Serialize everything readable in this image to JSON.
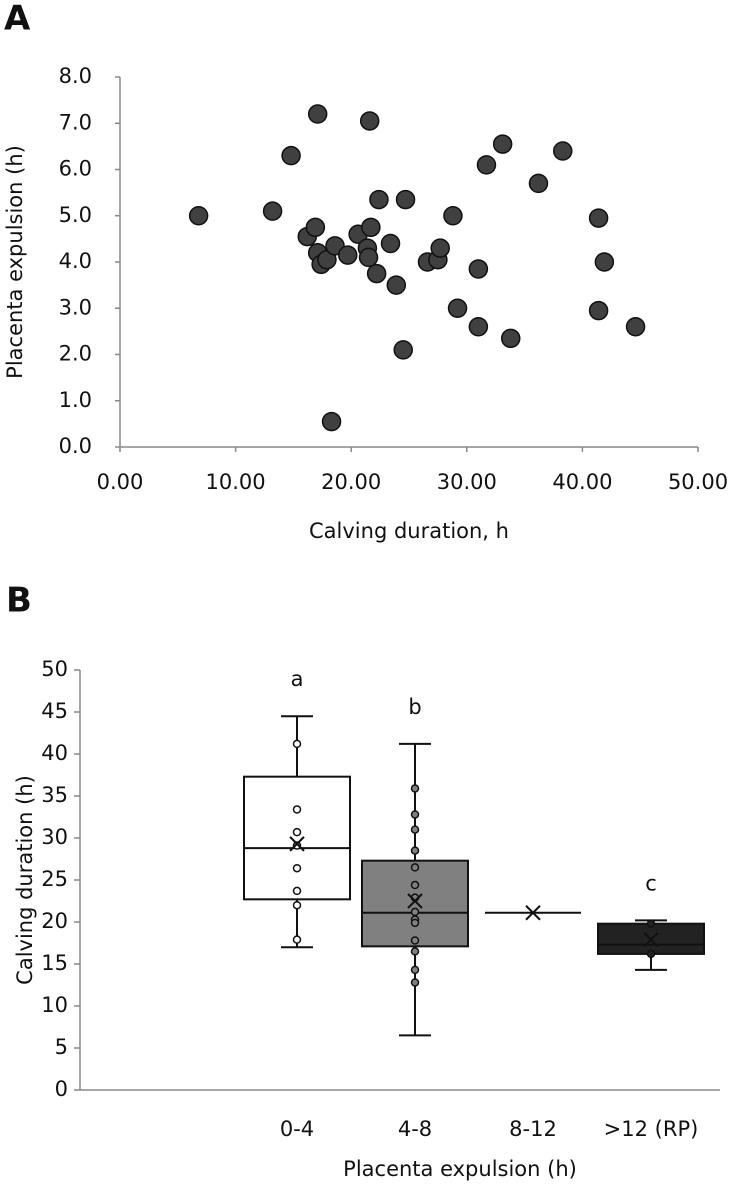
{
  "chart_data": [
    {
      "type": "scatter",
      "label": "A",
      "x_label": "Calving duration, h",
      "y_label": "Placenta expulsion (h)",
      "color": "#404040",
      "x": [
        6.8,
        13.2,
        14.8,
        17.1,
        21.6,
        16.2,
        16.9,
        17.1,
        17.4,
        17.9,
        18.6,
        18.3,
        19.7,
        20.6,
        21.4,
        21.5,
        21.7,
        22.2,
        22.4,
        23.4,
        23.9,
        24.5,
        24.7,
        26.6,
        27.5,
        27.7,
        28.8,
        29.2,
        31.0,
        31.0,
        31.7,
        33.1,
        33.8,
        36.2,
        38.3,
        41.4,
        41.4,
        41.9,
        44.6
      ],
      "values": [
        5.0,
        5.1,
        6.3,
        7.2,
        7.05,
        4.55,
        4.75,
        4.2,
        3.95,
        4.05,
        4.35,
        0.55,
        4.15,
        4.6,
        4.3,
        4.1,
        4.75,
        3.75,
        5.35,
        4.4,
        3.5,
        2.1,
        5.35,
        4.0,
        4.05,
        4.3,
        5.0,
        3.0,
        2.6,
        3.85,
        6.1,
        6.55,
        2.35,
        5.7,
        6.4,
        4.95,
        2.95,
        4.0,
        2.6
      ],
      "xlim": [
        0,
        50
      ],
      "xticks": [
        {
          "value": 0,
          "label": "0.00"
        },
        {
          "value": 10,
          "label": "10.00"
        },
        {
          "value": 20,
          "label": "20.00"
        },
        {
          "value": 30,
          "label": "30.00"
        },
        {
          "value": 40,
          "label": "40.00"
        },
        {
          "value": 50,
          "label": "50.00"
        }
      ],
      "ylim": [
        0,
        8
      ],
      "yticks": [
        {
          "value": 0,
          "label": "0.0"
        },
        {
          "value": 1,
          "label": "1.0"
        },
        {
          "value": 2,
          "label": "2.0"
        },
        {
          "value": 3,
          "label": "3.0"
        },
        {
          "value": 4,
          "label": "4.0"
        },
        {
          "value": 5,
          "label": "5.0"
        },
        {
          "value": 6,
          "label": "6.0"
        },
        {
          "value": 7,
          "label": "7.0"
        },
        {
          "value": 8,
          "label": "8.0"
        }
      ]
    },
    {
      "type": "box",
      "label": "B",
      "x_label": "Placenta expulsion (h)",
      "y_label": "Calving duration (h)",
      "categories": [
        null,
        "0-4",
        "4-8",
        "8-12",
        ">12 (RP)"
      ],
      "colors": [
        null,
        "#ffffff",
        "#808080",
        null,
        "#222222"
      ],
      "min": [
        null,
        17.0,
        6.5,
        null,
        14.3
      ],
      "q1": [
        null,
        22.7,
        17.1,
        null,
        16.2
      ],
      "median": [
        null,
        28.8,
        21.1,
        21.1,
        17.3
      ],
      "q3": [
        null,
        37.3,
        27.3,
        null,
        19.8
      ],
      "max": [
        null,
        44.5,
        41.2,
        null,
        20.2
      ],
      "mean": [
        null,
        29.3,
        22.5,
        21.1,
        17.9
      ],
      "points": [
        [],
        [
          41.2,
          33.4,
          30.7,
          29.1,
          26.4,
          23.7,
          22.0,
          17.9
        ],
        [
          35.9,
          32.8,
          31.0,
          28.5,
          26.5,
          24.4,
          22.9,
          21.2,
          20.3,
          19.9,
          17.8,
          16.5,
          14.3,
          12.8
        ],
        [],
        [
          19.8,
          16.2
        ]
      ],
      "letters": [
        null,
        "a",
        "b",
        null,
        "c"
      ],
      "ylim": [
        0,
        50
      ],
      "yticks": [
        0,
        5,
        10,
        15,
        20,
        25,
        30,
        35,
        40,
        45,
        50
      ]
    }
  ]
}
